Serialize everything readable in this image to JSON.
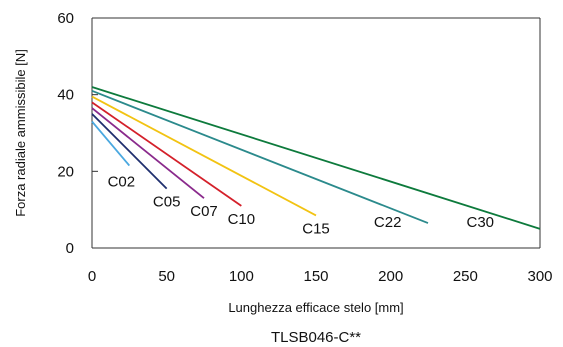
{
  "chart_data": {
    "type": "line",
    "title": "",
    "caption": "TLSB046-C**",
    "xlabel": "Lunghezza efficace stelo [mm]",
    "ylabel": "Forza radiale ammissibile [N]",
    "xlim": [
      0,
      300
    ],
    "ylim": [
      0,
      60
    ],
    "xticks": [
      "0",
      "50",
      "100",
      "150",
      "200",
      "250",
      "300"
    ],
    "yticks": [
      "0",
      "20",
      "40",
      "60"
    ],
    "grid": false,
    "legend": "inline labels",
    "series": [
      {
        "name": "C02",
        "color": "#4aa8e0",
        "x": [
          0,
          25
        ],
        "y": [
          33,
          21.5
        ]
      },
      {
        "name": "C05",
        "color": "#1f2f6e",
        "x": [
          0,
          50
        ],
        "y": [
          35,
          15.5
        ]
      },
      {
        "name": "C07",
        "color": "#8a2a8c",
        "x": [
          0,
          75
        ],
        "y": [
          36.5,
          13
        ]
      },
      {
        "name": "C10",
        "color": "#d4202a",
        "x": [
          0,
          100
        ],
        "y": [
          38,
          11
        ]
      },
      {
        "name": "C15",
        "color": "#f2c312",
        "x": [
          0,
          150
        ],
        "y": [
          39.5,
          8.5
        ]
      },
      {
        "name": "C22",
        "color": "#2b8a8c",
        "x": [
          0,
          225
        ],
        "y": [
          41,
          6.5
        ]
      },
      {
        "name": "C30",
        "color": "#0d7a3c",
        "x": [
          0,
          300
        ],
        "y": [
          42,
          5
        ]
      }
    ]
  }
}
